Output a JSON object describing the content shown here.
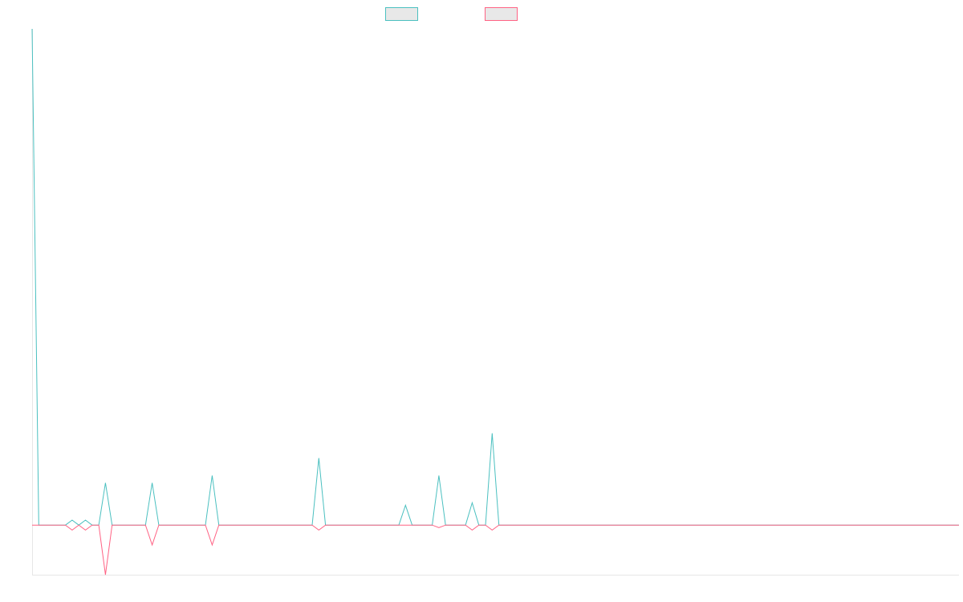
{
  "chart_data": {
    "type": "line",
    "title": "",
    "xlabel": "",
    "ylabel": "",
    "grid": false,
    "legend_position": "top-center",
    "x_count": 140,
    "ylim": [
      -10,
      100
    ],
    "series": [
      {
        "color": "#4bc0c0",
        "fill": "#e8e8e8",
        "points": [
          [
            0,
            100
          ],
          [
            1,
            0
          ],
          [
            5,
            0
          ],
          [
            6,
            1
          ],
          [
            7,
            0
          ],
          [
            8,
            1
          ],
          [
            9,
            0
          ],
          [
            10,
            0
          ],
          [
            11,
            8.5
          ],
          [
            12,
            0
          ],
          [
            17,
            0
          ],
          [
            18,
            8.5
          ],
          [
            19,
            0
          ],
          [
            26,
            0
          ],
          [
            27,
            10
          ],
          [
            28,
            0
          ],
          [
            42,
            0
          ],
          [
            43,
            13.5
          ],
          [
            44,
            0
          ],
          [
            55,
            0
          ],
          [
            56,
            4
          ],
          [
            57,
            0
          ],
          [
            60,
            0
          ],
          [
            61,
            10
          ],
          [
            62,
            0
          ],
          [
            65,
            0
          ],
          [
            66,
            4.5
          ],
          [
            67,
            0
          ],
          [
            68,
            0
          ],
          [
            69,
            18.5
          ],
          [
            70,
            0
          ],
          [
            139,
            0
          ]
        ]
      },
      {
        "color": "#ff6384",
        "fill": "#e8e8e8",
        "points": [
          [
            0,
            0
          ],
          [
            5,
            0
          ],
          [
            6,
            -1
          ],
          [
            7,
            0
          ],
          [
            8,
            -1
          ],
          [
            9,
            0
          ],
          [
            10,
            0
          ],
          [
            11,
            -10
          ],
          [
            12,
            0
          ],
          [
            17,
            0
          ],
          [
            18,
            -4
          ],
          [
            19,
            0
          ],
          [
            26,
            0
          ],
          [
            27,
            -4
          ],
          [
            28,
            0
          ],
          [
            42,
            0
          ],
          [
            43,
            -1
          ],
          [
            44,
            0
          ],
          [
            60,
            0
          ],
          [
            61,
            -0.5
          ],
          [
            62,
            0
          ],
          [
            65,
            0
          ],
          [
            66,
            -1
          ],
          [
            67,
            0
          ],
          [
            68,
            0
          ],
          [
            69,
            -1
          ],
          [
            70,
            0
          ],
          [
            139,
            0
          ]
        ]
      }
    ]
  }
}
